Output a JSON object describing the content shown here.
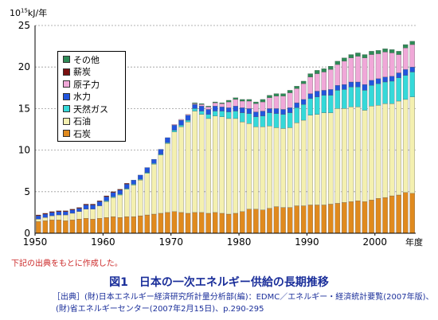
{
  "chart_data": {
    "type": "bar",
    "stacked": true,
    "ylabel": "10^15kJ/年",
    "ylabel_parts": {
      "base": "10",
      "exp": "15",
      "unit": "kJ/年"
    },
    "xlabel": "年度",
    "ylim": [
      0,
      25
    ],
    "xlim": [
      1950,
      2005
    ],
    "yticks": [
      0,
      5,
      10,
      15,
      20,
      25
    ],
    "xticks": [
      1950,
      1960,
      1970,
      1980,
      1990,
      2000
    ],
    "grid": "horizontal",
    "legend_position": "top-left",
    "x": [
      1950,
      1951,
      1952,
      1953,
      1954,
      1955,
      1956,
      1957,
      1958,
      1959,
      1960,
      1961,
      1962,
      1963,
      1964,
      1965,
      1966,
      1967,
      1968,
      1969,
      1970,
      1971,
      1972,
      1973,
      1974,
      1975,
      1976,
      1977,
      1978,
      1979,
      1980,
      1981,
      1982,
      1983,
      1984,
      1985,
      1986,
      1987,
      1988,
      1989,
      1990,
      1991,
      1992,
      1993,
      1994,
      1995,
      1996,
      1997,
      1998,
      1999,
      2000,
      2001,
      2002,
      2003,
      2004,
      2005
    ],
    "series": [
      {
        "name": "石炭",
        "color": "#e08a1e",
        "values": [
          1.4,
          1.5,
          1.6,
          1.6,
          1.5,
          1.6,
          1.7,
          1.8,
          1.7,
          1.8,
          1.9,
          2.0,
          1.9,
          2.0,
          2.0,
          2.1,
          2.2,
          2.3,
          2.4,
          2.5,
          2.6,
          2.5,
          2.4,
          2.5,
          2.5,
          2.4,
          2.5,
          2.4,
          2.3,
          2.4,
          2.6,
          2.9,
          2.9,
          2.8,
          3.0,
          3.2,
          3.1,
          3.1,
          3.3,
          3.3,
          3.4,
          3.4,
          3.4,
          3.5,
          3.6,
          3.7,
          3.8,
          3.9,
          3.8,
          4.0,
          4.2,
          4.3,
          4.5,
          4.6,
          4.9,
          4.8
        ]
      },
      {
        "name": "石油",
        "color": "#f4f0b0",
        "values": [
          0.3,
          0.4,
          0.5,
          0.6,
          0.7,
          0.8,
          0.9,
          1.1,
          1.2,
          1.5,
          1.9,
          2.3,
          2.7,
          3.3,
          3.8,
          4.3,
          5.0,
          6.0,
          7.0,
          8.3,
          9.6,
          10.3,
          11.0,
          12.2,
          11.8,
          11.4,
          11.6,
          11.6,
          11.5,
          11.4,
          10.8,
          10.3,
          9.9,
          10.0,
          9.9,
          9.5,
          9.5,
          9.6,
          10.0,
          10.3,
          10.8,
          10.9,
          11.1,
          11.0,
          11.4,
          11.3,
          11.4,
          11.3,
          11.0,
          11.3,
          11.2,
          11.3,
          11.1,
          11.3,
          11.2,
          11.6
        ]
      },
      {
        "name": "天然ガス",
        "color": "#35d9d9",
        "values": [
          0.0,
          0.0,
          0.0,
          0.0,
          0.0,
          0.0,
          0.0,
          0.0,
          0.0,
          0.0,
          0.1,
          0.1,
          0.1,
          0.1,
          0.1,
          0.1,
          0.1,
          0.1,
          0.1,
          0.1,
          0.2,
          0.2,
          0.2,
          0.3,
          0.4,
          0.5,
          0.6,
          0.7,
          0.8,
          0.9,
          1.1,
          1.2,
          1.2,
          1.3,
          1.6,
          1.7,
          1.7,
          1.8,
          1.8,
          1.9,
          2.0,
          2.1,
          2.1,
          2.1,
          2.2,
          2.3,
          2.4,
          2.4,
          2.4,
          2.5,
          2.6,
          2.6,
          2.7,
          2.8,
          2.9,
          3.0
        ]
      },
      {
        "name": "水力",
        "color": "#2255dd",
        "values": [
          0.4,
          0.4,
          0.4,
          0.4,
          0.4,
          0.4,
          0.4,
          0.5,
          0.5,
          0.5,
          0.5,
          0.5,
          0.5,
          0.5,
          0.5,
          0.5,
          0.6,
          0.5,
          0.6,
          0.6,
          0.6,
          0.6,
          0.6,
          0.5,
          0.6,
          0.6,
          0.6,
          0.5,
          0.5,
          0.6,
          0.6,
          0.6,
          0.6,
          0.6,
          0.5,
          0.6,
          0.6,
          0.6,
          0.6,
          0.6,
          0.6,
          0.7,
          0.6,
          0.7,
          0.6,
          0.6,
          0.6,
          0.6,
          0.7,
          0.6,
          0.6,
          0.6,
          0.6,
          0.6,
          0.7,
          0.6
        ]
      },
      {
        "name": "原子力",
        "color": "#f0a8d8",
        "values": [
          0.0,
          0.0,
          0.0,
          0.0,
          0.0,
          0.0,
          0.0,
          0.0,
          0.0,
          0.0,
          0.0,
          0.0,
          0.0,
          0.0,
          0.0,
          0.0,
          0.0,
          0.0,
          0.0,
          0.0,
          0.1,
          0.1,
          0.1,
          0.1,
          0.2,
          0.3,
          0.4,
          0.4,
          0.7,
          0.8,
          0.8,
          0.9,
          1.0,
          1.1,
          1.3,
          1.5,
          1.6,
          1.8,
          1.7,
          1.9,
          2.0,
          2.1,
          2.2,
          2.4,
          2.5,
          2.8,
          2.9,
          3.1,
          3.2,
          3.1,
          3.0,
          3.0,
          2.8,
          2.2,
          2.6,
          2.7
        ]
      },
      {
        "name": "薪炭",
        "color": "#7a1010",
        "values": [
          0.1,
          0.1,
          0.1,
          0.1,
          0.1,
          0.1,
          0.1,
          0.1,
          0.1,
          0.1,
          0.1,
          0.1,
          0.1,
          0.1,
          0.0,
          0.0,
          0.0,
          0.0,
          0.0,
          0.0,
          0.0,
          0.0,
          0.0,
          0.0,
          0.0,
          0.0,
          0.0,
          0.0,
          0.0,
          0.0,
          0.0,
          0.0,
          0.0,
          0.0,
          0.0,
          0.0,
          0.0,
          0.0,
          0.0,
          0.0,
          0.0,
          0.0,
          0.0,
          0.0,
          0.0,
          0.0,
          0.0,
          0.0,
          0.0,
          0.0,
          0.0,
          0.0,
          0.0,
          0.0,
          0.0,
          0.0
        ]
      },
      {
        "name": "その他",
        "color": "#2e8b57",
        "values": [
          0.0,
          0.0,
          0.0,
          0.0,
          0.0,
          0.0,
          0.0,
          0.0,
          0.0,
          0.0,
          0.0,
          0.0,
          0.0,
          0.0,
          0.0,
          0.0,
          0.0,
          0.0,
          0.0,
          0.0,
          0.0,
          0.0,
          0.0,
          0.1,
          0.1,
          0.1,
          0.1,
          0.1,
          0.2,
          0.2,
          0.2,
          0.2,
          0.2,
          0.3,
          0.3,
          0.3,
          0.3,
          0.3,
          0.3,
          0.3,
          0.4,
          0.4,
          0.4,
          0.4,
          0.4,
          0.4,
          0.4,
          0.4,
          0.4,
          0.4,
          0.4,
          0.4,
          0.4,
          0.4,
          0.4,
          0.4
        ]
      }
    ]
  },
  "legend_order": [
    "その他",
    "薪炭",
    "原子力",
    "水力",
    "天然ガス",
    "石油",
    "石炭"
  ],
  "note": "下記の出典をもとに作成した。",
  "figure_title": "図1　日本の一次エネルギー供給の長期推移",
  "source_line1": "［出典］(財)日本エネルギー経済研究所計量分析部(編)：EDMC／エネルギー・経済統計要覧(2007年版)、",
  "source_line2": "(財)省エネルギーセンター(2007年2月15日)、p.290-295",
  "colors": {
    "title": "#1a2e9a",
    "note": "#cc2a2a",
    "grid": "#9a9a9a"
  }
}
